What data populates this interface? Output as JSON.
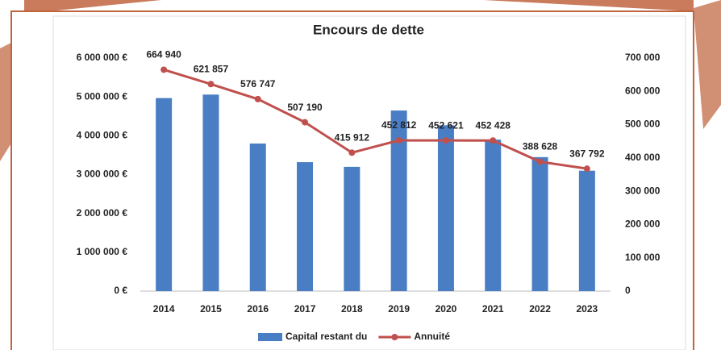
{
  "chart_data": {
    "type": "bar-line",
    "title": "Encours de dette",
    "categories": [
      "2014",
      "2015",
      "2016",
      "2017",
      "2018",
      "2019",
      "2020",
      "2021",
      "2022",
      "2023"
    ],
    "series": [
      {
        "name": "Capital restant du",
        "type": "bar",
        "color": "#4a7ec4",
        "values": [
          4970000,
          5060000,
          3800000,
          3320000,
          3200000,
          4650000,
          4270000,
          3900000,
          3450000,
          3100000
        ]
      },
      {
        "name": "Annuité",
        "type": "line",
        "axis": "y2",
        "color": "#c0504d",
        "values": [
          664940,
          621857,
          576747,
          507190,
          415912,
          452812,
          452621,
          452428,
          388628,
          367792
        ],
        "value_labels": [
          "664 940",
          "621 857",
          "576 747",
          "507 190",
          "415 912",
          "452 812",
          "452 621",
          "452 428",
          "388 628",
          "367 792"
        ]
      }
    ],
    "ylim": [
      0,
      6000000
    ],
    "yticks": [
      {
        "value": 0,
        "label": "0 €"
      },
      {
        "value": 1000000,
        "label": "1 000 000 €"
      },
      {
        "value": 2000000,
        "label": "2 000 000 €"
      },
      {
        "value": 3000000,
        "label": "3 000 000 €"
      },
      {
        "value": 4000000,
        "label": "4 000 000 €"
      },
      {
        "value": 5000000,
        "label": "5 000 000 €"
      },
      {
        "value": 6000000,
        "label": "6 000 000 €"
      }
    ],
    "y2lim": [
      0,
      700000
    ],
    "y2ticks": [
      0,
      {
        "value": 100000,
        "label": "100 000"
      },
      {
        "value": 200000,
        "label": "200 000"
      },
      {
        "value": 300000,
        "label": "300 000"
      },
      {
        "value": 400000,
        "label": "400 000"
      },
      {
        "value": 500000,
        "label": "500 000"
      },
      {
        "value": 600000,
        "label": "600 000"
      },
      {
        "value": 700000,
        "label": "700 000"
      }
    ],
    "grid": false,
    "legend": "bottom"
  }
}
